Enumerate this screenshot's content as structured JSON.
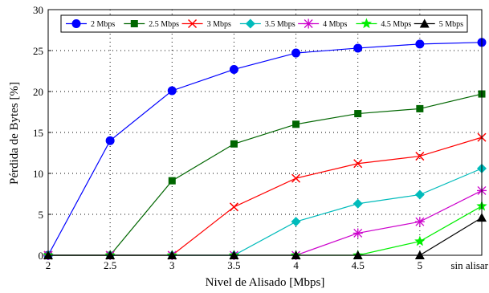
{
  "chart_data": {
    "type": "line",
    "title": "",
    "xlabel": "Nivel de Alisado [Mbps]",
    "ylabel": "Pérdida de Bytes  [%]",
    "categories": [
      "2",
      "2.5",
      "3",
      "3.5",
      "4",
      "4.5",
      "5",
      "sin alisar"
    ],
    "ylim": [
      0,
      30
    ],
    "yticks": [
      0,
      5,
      10,
      15,
      20,
      25,
      30
    ],
    "grid": true,
    "legend_position": "top",
    "series": [
      {
        "name": "2 Mbps",
        "color": "#0000ff",
        "marker": "circle",
        "values": [
          0,
          14.0,
          20.1,
          22.7,
          24.7,
          25.3,
          25.8,
          26.0
        ]
      },
      {
        "name": "2.5 Mbps",
        "color": "#006600",
        "marker": "square",
        "values": [
          0,
          0,
          9.1,
          13.6,
          16.0,
          17.3,
          17.9,
          19.7
        ]
      },
      {
        "name": "3 Mbps",
        "color": "#ff0000",
        "marker": "x",
        "values": [
          0,
          0,
          0,
          5.9,
          9.4,
          11.2,
          12.1,
          14.4
        ]
      },
      {
        "name": "3.5 Mbps",
        "color": "#00bbbb",
        "marker": "diamond",
        "values": [
          0,
          0,
          0,
          0,
          4.1,
          6.3,
          7.4,
          10.6
        ]
      },
      {
        "name": "4 Mbps",
        "color": "#cc00cc",
        "marker": "asterisk",
        "values": [
          0,
          0,
          0,
          0,
          0,
          2.7,
          4.1,
          7.9
        ]
      },
      {
        "name": "4.5 Mbps",
        "color": "#00ee00",
        "marker": "star",
        "values": [
          0,
          0,
          0,
          0,
          0,
          0,
          1.7,
          6.0
        ]
      },
      {
        "name": "5 Mbps",
        "color": "#000000",
        "marker": "triangle",
        "values": [
          0,
          0,
          0,
          0,
          0,
          0,
          0,
          4.6
        ]
      }
    ]
  }
}
